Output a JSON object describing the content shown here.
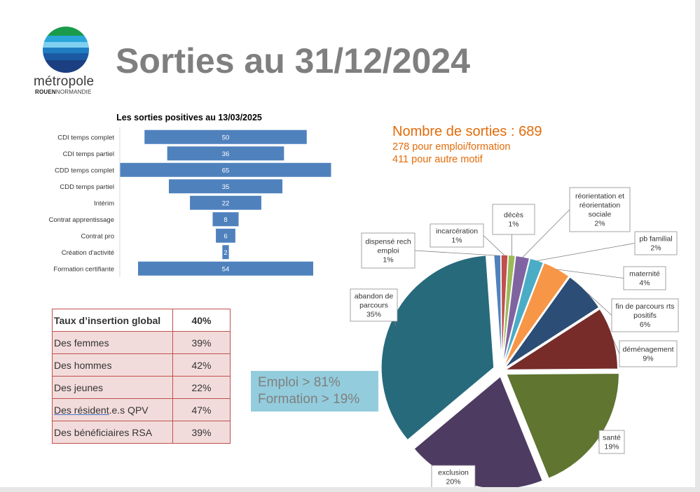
{
  "page": {
    "title": "Sorties au 31/12/2024",
    "logo_word": "métropole",
    "logo_sub_bold": "ROUEN",
    "logo_sub": "NORMANDIE"
  },
  "summary": {
    "title": "Nombre de sorties : 689",
    "line1": "278 pour emploi/formation",
    "line2": "411 pour autre motif"
  },
  "rates_table": {
    "header": {
      "label": "Taux d’insertion global",
      "value": "40%"
    },
    "rows": [
      {
        "label": "Des femmes",
        "value": "39%"
      },
      {
        "label": "Des hommes",
        "value": "42%"
      },
      {
        "label": "Des jeunes",
        "value": "22%"
      },
      {
        "label": "Des résident.e.s QPV",
        "label_underlined": "Des résident",
        "label_rest": ".e.s QPV",
        "value": "47%"
      },
      {
        "label": "Des bénéficiaires RSA",
        "value": "39%"
      }
    ]
  },
  "emploi_box": {
    "line1": "Emploi > 81%",
    "line2": "Formation > 19%"
  },
  "colors": {
    "bar": "#4f81bd",
    "title_gray": "#7f7f7f",
    "summary_orange": "#e36c0a",
    "table_border": "#c0504d",
    "table_fill": "#f2dcdb",
    "box_fill": "#93cddd"
  },
  "chart_data": [
    {
      "type": "bar",
      "orientation": "horizontal-centered",
      "title": "Les sorties positives au 13/03/2025",
      "categories": [
        "CDI temps complet",
        "CDI temps partiel",
        "CDD temps complet",
        "CDD temps partiel",
        "Intérim",
        "Contrat apprentissage",
        "Contrat pro",
        "Création d'activité",
        "Formation certifiante"
      ],
      "values": [
        50,
        36,
        65,
        35,
        22,
        8,
        6,
        2,
        54
      ],
      "data_labels": true,
      "color": "#4f81bd"
    },
    {
      "type": "pie",
      "exploded": true,
      "slices": [
        {
          "label": "dispensé rech emploi",
          "pct": "1%",
          "value": 1,
          "color": "#4f81bd"
        },
        {
          "label": "incarcération",
          "pct": "1%",
          "value": 1,
          "color": "#c0504d"
        },
        {
          "label": "décès",
          "pct": "1%",
          "value": 1,
          "color": "#9bbb59"
        },
        {
          "label": "réorientation et réorientation sociale",
          "pct": "2%",
          "value": 2,
          "color": "#8064a2"
        },
        {
          "label": "pb familial",
          "pct": "2%",
          "value": 2,
          "color": "#4bacc6"
        },
        {
          "label": "maternité",
          "pct": "4%",
          "value": 4,
          "color": "#f79646"
        },
        {
          "label": "fin de parcours rts positifs",
          "pct": "6%",
          "value": 6,
          "color": "#2c4d75"
        },
        {
          "label": "déménagement",
          "pct": "9%",
          "value": 9,
          "color": "#772c2a"
        },
        {
          "label": "santé",
          "pct": "19%",
          "value": 19,
          "color": "#5f7530"
        },
        {
          "label": "exclusion",
          "pct": "20%",
          "value": 20,
          "color": "#4d3b62"
        },
        {
          "label": "abandon de parcours",
          "pct": "35%",
          "value": 35,
          "color": "#276a7c"
        }
      ]
    }
  ]
}
